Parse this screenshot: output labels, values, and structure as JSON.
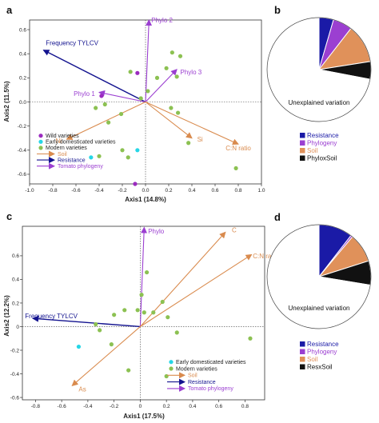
{
  "chart_data": [
    {
      "type": "scatter",
      "panel": "a",
      "xlabel": "Axis1 (14.8%)",
      "ylabel": "Axis2 (11.5%)",
      "xlim": [
        -1.0,
        1.0
      ],
      "ylim": [
        -0.68,
        0.68
      ],
      "x_ticks": [
        -1.0,
        -0.8,
        -0.6,
        -0.4,
        -0.2,
        0.0,
        0.2,
        0.4,
        0.6,
        0.8,
        1.0
      ],
      "y_ticks": [
        -0.6,
        -0.4,
        -0.2,
        0.0,
        0.2,
        0.4,
        0.6
      ],
      "x_tick_labels": [
        "-1.0",
        "-0.8",
        "-0.6",
        "-0.4",
        "-0.2",
        "0.0",
        "0.2",
        "0.4",
        "0.6",
        "0.8",
        "1.0"
      ],
      "y_tick_labels": [
        "-0.6",
        "-0.4",
        "-0.2",
        "0.0",
        "0.2",
        "0.4",
        "0.6"
      ],
      "points": [
        {
          "group": "wild",
          "x": -0.07,
          "y": 0.24
        },
        {
          "group": "wild",
          "x": -0.38,
          "y": 0.05
        },
        {
          "group": "wild",
          "x": -0.09,
          "y": -0.68
        },
        {
          "group": "early",
          "x": -0.47,
          "y": -0.46
        },
        {
          "group": "early",
          "x": -0.07,
          "y": -0.4
        },
        {
          "group": "modern",
          "x": 0.23,
          "y": 0.41
        },
        {
          "group": "modern",
          "x": 0.18,
          "y": 0.28
        },
        {
          "group": "modern",
          "x": 0.3,
          "y": 0.38
        },
        {
          "group": "modern",
          "x": 0.1,
          "y": 0.2
        },
        {
          "group": "modern",
          "x": -0.13,
          "y": 0.25
        },
        {
          "group": "modern",
          "x": 0.27,
          "y": 0.21
        },
        {
          "group": "modern",
          "x": 0.02,
          "y": 0.09
        },
        {
          "group": "modern",
          "x": -0.04,
          "y": 0.03
        },
        {
          "group": "modern",
          "x": -0.35,
          "y": -0.02
        },
        {
          "group": "modern",
          "x": -0.43,
          "y": -0.05
        },
        {
          "group": "modern",
          "x": -0.32,
          "y": -0.17
        },
        {
          "group": "modern",
          "x": -0.21,
          "y": -0.1
        },
        {
          "group": "modern",
          "x": 0.22,
          "y": -0.05
        },
        {
          "group": "modern",
          "x": 0.28,
          "y": -0.09
        },
        {
          "group": "modern",
          "x": -0.2,
          "y": -0.4
        },
        {
          "group": "modern",
          "x": -0.15,
          "y": -0.46
        },
        {
          "group": "modern",
          "x": -0.4,
          "y": -0.45
        },
        {
          "group": "modern",
          "x": 0.37,
          "y": -0.34
        },
        {
          "group": "modern",
          "x": 0.78,
          "y": -0.55
        }
      ],
      "vectors": [
        {
          "kind": "resistance",
          "label": "Frequency TYLCV",
          "x": -0.88,
          "y": 0.43,
          "lx": -0.86,
          "ly": 0.47,
          "anchor": "start"
        },
        {
          "kind": "phylogeny",
          "label": "Phylo 2",
          "x": 0.03,
          "y": 0.68,
          "lx": 0.05,
          "ly": 0.66,
          "anchor": "start"
        },
        {
          "kind": "phylogeny",
          "label": "Phylo 3",
          "x": 0.27,
          "y": 0.27,
          "lx": 0.3,
          "ly": 0.23,
          "anchor": "start"
        },
        {
          "kind": "phylogeny",
          "label": "Phylo 1",
          "x": -0.4,
          "y": 0.08,
          "lx": -0.62,
          "ly": 0.05,
          "anchor": "start"
        },
        {
          "kind": "soil",
          "label": "Ni",
          "x": -0.68,
          "y": -0.31,
          "lx": -0.75,
          "ly": -0.34,
          "anchor": "middle"
        },
        {
          "kind": "soil",
          "label": "Si",
          "x": 0.4,
          "y": -0.3,
          "lx": 0.47,
          "ly": -0.33,
          "anchor": "middle"
        },
        {
          "kind": "soil",
          "label": "C:N ratio",
          "x": 0.8,
          "y": -0.35,
          "lx": 0.8,
          "ly": -0.4,
          "anchor": "middle"
        }
      ],
      "legend": [
        {
          "kind": "marker",
          "group": "wild",
          "label": "Wild varieties"
        },
        {
          "kind": "marker",
          "group": "early",
          "label": "Early domesticated varieties"
        },
        {
          "kind": "marker",
          "group": "modern",
          "label": "Modern varieties"
        },
        {
          "kind": "arrow",
          "group": "soil",
          "label": "Soil"
        },
        {
          "kind": "arrow",
          "group": "resistance",
          "label": "Resistance"
        },
        {
          "kind": "arrow",
          "group": "phylogeny",
          "label": "Tomato phylogeny"
        }
      ]
    },
    {
      "type": "pie",
      "panel": "b",
      "slices": [
        {
          "label": "Resistance",
          "value": 4.5,
          "color": "#1a1aa6",
          "show_legend": true
        },
        {
          "label": "Phylogeny",
          "value": 6.0,
          "color": "#9b3fd1",
          "show_legend": true
        },
        {
          "label": "Soil",
          "value": 12.0,
          "color": "#e0915a",
          "show_legend": true
        },
        {
          "label": "PhyloxSoil",
          "value": 5.5,
          "color": "#111111",
          "show_legend": true
        },
        {
          "label": "Unexplained variation",
          "value": 72.0,
          "color": "#ffffff",
          "show_legend": false
        }
      ]
    },
    {
      "type": "scatter",
      "panel": "c",
      "xlabel": "Axis1 (17.5%)",
      "ylabel": "Axis2 (12.2%)",
      "xlim": [
        -0.9,
        0.95
      ],
      "ylim": [
        -0.62,
        0.85
      ],
      "x_ticks": [
        -0.8,
        -0.6,
        -0.4,
        -0.2,
        0.0,
        0.2,
        0.4,
        0.6,
        0.8
      ],
      "y_ticks": [
        -0.6,
        -0.4,
        -0.2,
        0.0,
        0.2,
        0.4,
        0.6
      ],
      "x_tick_labels": [
        "-0.8",
        "-0.6",
        "-0.4",
        "-0.2",
        "0",
        "0.2",
        "0.4",
        "0.6",
        "0.8"
      ],
      "y_tick_labels": [
        "-0.6",
        "-0.4",
        "-0.2",
        "0",
        "0.2",
        "0.4",
        "0.6"
      ],
      "points": [
        {
          "group": "early",
          "x": -0.47,
          "y": -0.17
        },
        {
          "group": "modern",
          "x": 0.05,
          "y": 0.46
        },
        {
          "group": "modern",
          "x": 0.01,
          "y": 0.27
        },
        {
          "group": "modern",
          "x": -0.02,
          "y": 0.14
        },
        {
          "group": "modern",
          "x": -0.12,
          "y": 0.14
        },
        {
          "group": "modern",
          "x": 0.03,
          "y": 0.12
        },
        {
          "group": "modern",
          "x": 0.1,
          "y": 0.12
        },
        {
          "group": "modern",
          "x": 0.17,
          "y": 0.21
        },
        {
          "group": "modern",
          "x": -0.2,
          "y": 0.1
        },
        {
          "group": "modern",
          "x": -0.34,
          "y": 0.02
        },
        {
          "group": "modern",
          "x": -0.31,
          "y": -0.03
        },
        {
          "group": "modern",
          "x": 0.21,
          "y": 0.08
        },
        {
          "group": "modern",
          "x": 0.28,
          "y": -0.05
        },
        {
          "group": "modern",
          "x": -0.22,
          "y": -0.15
        },
        {
          "group": "modern",
          "x": -0.09,
          "y": -0.37
        },
        {
          "group": "modern",
          "x": 0.2,
          "y": -0.42
        },
        {
          "group": "modern",
          "x": 0.84,
          "y": -0.1
        }
      ],
      "vectors": [
        {
          "kind": "resistance",
          "label": "Frequency TYLCV",
          "x": -0.82,
          "y": 0.07,
          "lx": -0.88,
          "ly": 0.07,
          "anchor": "start"
        },
        {
          "kind": "phylogeny",
          "label": "Phylo",
          "x": 0.03,
          "y": 0.84,
          "lx": 0.06,
          "ly": 0.79,
          "anchor": "start"
        },
        {
          "kind": "soil",
          "label": "C",
          "x": 0.65,
          "y": 0.8,
          "lx": 0.7,
          "ly": 0.8,
          "anchor": "start"
        },
        {
          "kind": "soil",
          "label": "C:N ratio",
          "x": 0.85,
          "y": 0.61,
          "lx": 0.86,
          "ly": 0.58,
          "anchor": "start"
        },
        {
          "kind": "soil",
          "label": "As",
          "x": -0.52,
          "y": -0.5,
          "lx": -0.47,
          "ly": -0.55,
          "anchor": "start"
        }
      ],
      "legend": [
        {
          "kind": "marker",
          "group": "early",
          "label": "Early domesticated varieties"
        },
        {
          "kind": "marker",
          "group": "modern",
          "label": "Modern varieties"
        },
        {
          "kind": "arrow",
          "group": "soil",
          "label": "Soil"
        },
        {
          "kind": "arrow",
          "group": "resistance",
          "label": "Resistance"
        },
        {
          "kind": "arrow",
          "group": "phylogeny",
          "label": "Tomato phylogeny"
        }
      ]
    },
    {
      "type": "pie",
      "panel": "d",
      "slices": [
        {
          "label": "Resistance",
          "value": 10.5,
          "color": "#1a1aa6",
          "show_legend": true
        },
        {
          "label": "Phylogeny",
          "value": 0.6,
          "color": "#9b3fd1",
          "show_legend": true
        },
        {
          "label": "Soil",
          "value": 9.0,
          "color": "#e0915a",
          "show_legend": true
        },
        {
          "label": "ResxSoil",
          "value": 7.5,
          "color": "#111111",
          "show_legend": true
        },
        {
          "label": "Unexplained variation",
          "value": 72.4,
          "color": "#ffffff",
          "show_legend": false
        }
      ]
    }
  ],
  "colors": {
    "wild": "#9b2bbf",
    "early": "#26d6e6",
    "modern": "#8cc152",
    "soil": "#d98b4e",
    "resistance": "#13138f",
    "phylogeny": "#9b3fd1",
    "unexplained": "#ffffff"
  },
  "panel_a": {
    "letter": "a",
    "xlabel": "Axis1 (14.8%)",
    "ylabel": "Axis2 (11.5%)"
  },
  "panel_b": {
    "letter": "b",
    "center_label": "Unexplained variation"
  },
  "panel_c": {
    "letter": "c",
    "xlabel": "Axis1 (17.5%)",
    "ylabel": "Axis2 (12.2%)"
  },
  "panel_d": {
    "letter": "d",
    "center_label": "Unexplained variation"
  }
}
